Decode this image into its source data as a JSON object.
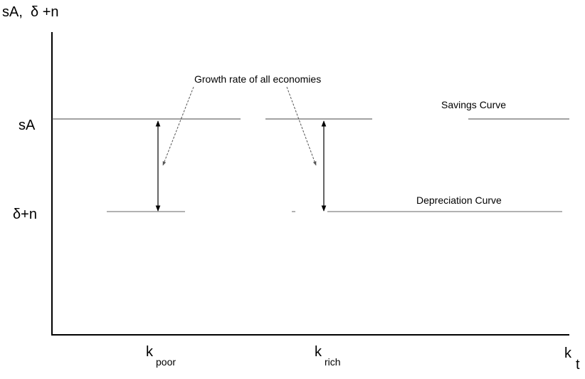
{
  "axes": {
    "y_label": "sA,  δ +n",
    "x_label": {
      "main": "k",
      "sub": "t"
    }
  },
  "levels": [
    {
      "label": "sA"
    },
    {
      "label": "δ+n"
    }
  ],
  "curves": [
    {
      "label": "Savings Curve"
    },
    {
      "label": "Depreciation Curve"
    }
  ],
  "annotation": "Growth rate of all economies",
  "x_points": [
    {
      "main": "k",
      "sub": "poor"
    },
    {
      "main": "k",
      "sub": "rich"
    }
  ]
}
